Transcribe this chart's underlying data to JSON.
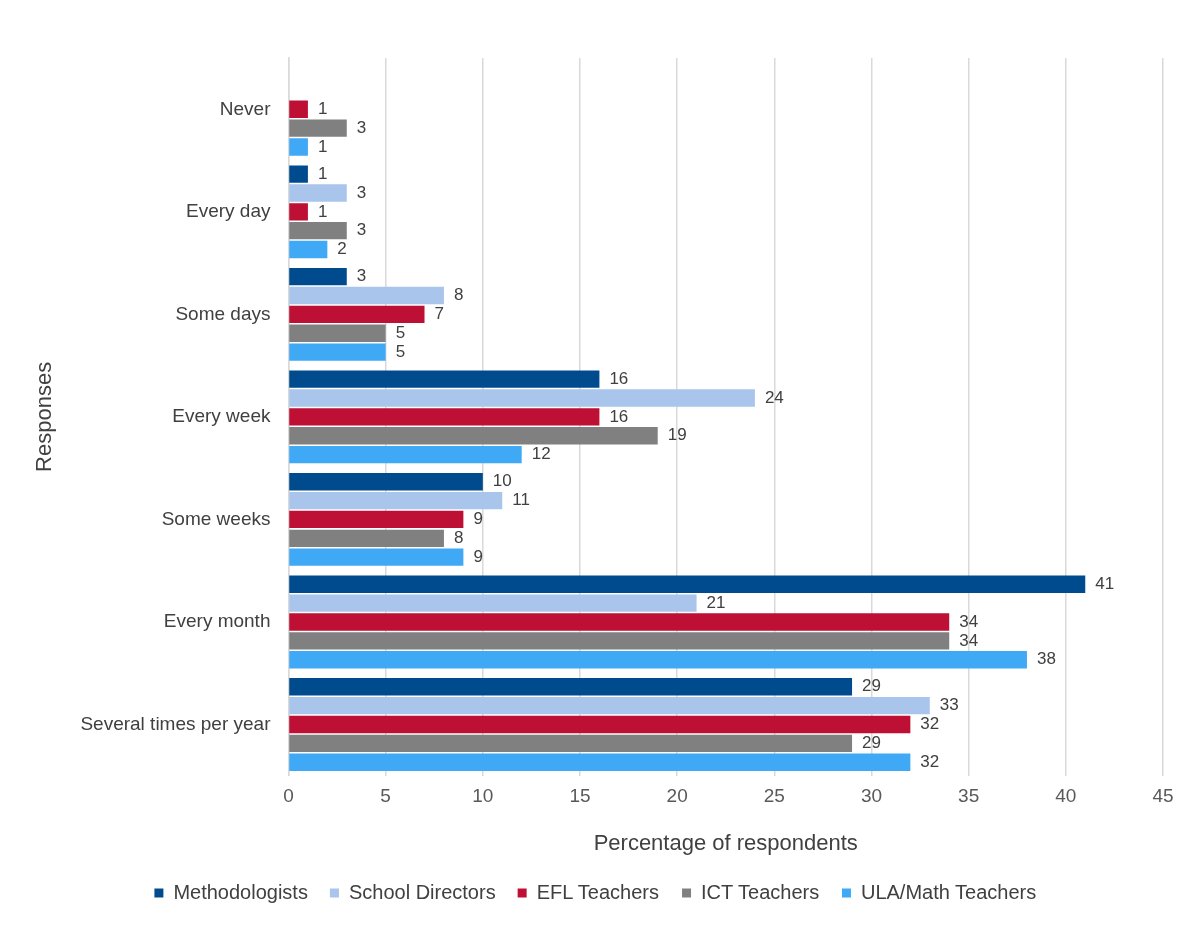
{
  "chart_data": {
    "type": "bar",
    "orientation": "horizontal",
    "xlabel": "Percentage of respondents",
    "ylabel": "Responses",
    "categories": [
      "Never",
      "Every day",
      "Some days",
      "Every week",
      "Some weeks",
      "Every month",
      "Several times per year"
    ],
    "series": [
      {
        "name": "Methodologists",
        "color": "#004b8d",
        "values": [
          null,
          1,
          3,
          16,
          10,
          41,
          29
        ]
      },
      {
        "name": "School Directors",
        "color": "#a9c5eb",
        "values": [
          null,
          3,
          8,
          24,
          11,
          21,
          33
        ]
      },
      {
        "name": "EFL Teachers",
        "color": "#be0f34",
        "values": [
          1,
          1,
          7,
          16,
          9,
          34,
          32
        ]
      },
      {
        "name": "ICT Teachers",
        "color": "#808080",
        "values": [
          3,
          3,
          5,
          19,
          8,
          34,
          29
        ]
      },
      {
        "name": "ULA/Math Teachers",
        "color": "#3fa9f5",
        "values": [
          1,
          2,
          5,
          12,
          9,
          38,
          32
        ]
      }
    ],
    "xlim": [
      0,
      45
    ],
    "xticks": [
      0,
      5,
      10,
      15,
      20,
      25,
      30,
      35,
      40,
      45
    ],
    "grid": "x",
    "legend": "bottom",
    "data_labels": true
  }
}
